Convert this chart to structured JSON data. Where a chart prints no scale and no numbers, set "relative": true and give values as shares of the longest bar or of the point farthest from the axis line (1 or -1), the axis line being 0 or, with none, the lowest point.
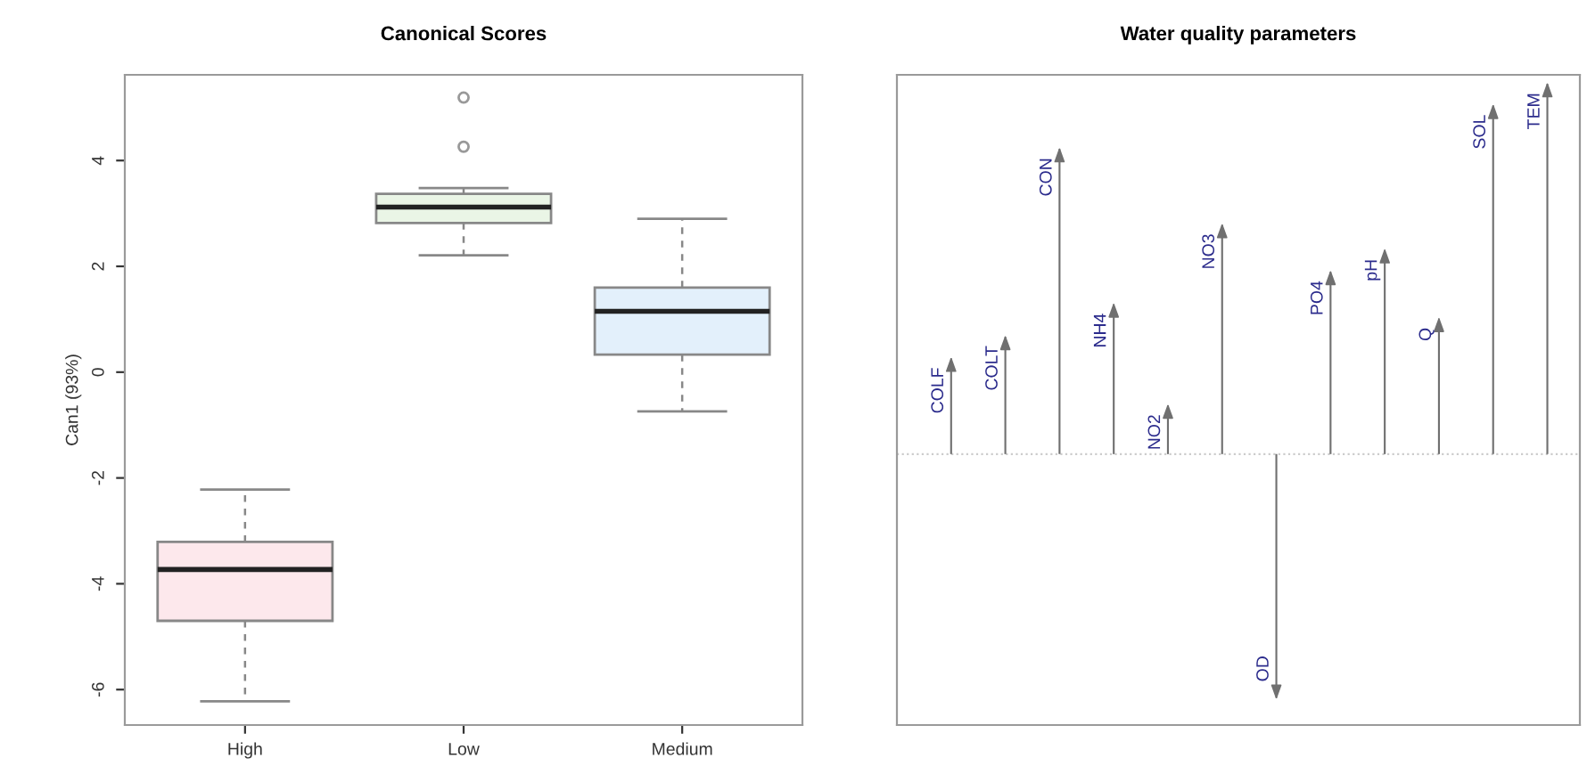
{
  "chart_data": [
    {
      "type": "box",
      "title": "Canonical Scores",
      "ylabel": "Can1 (93%)",
      "categories": [
        "High",
        "Low",
        "Medium"
      ],
      "boxes": [
        {
          "low": -6.22,
          "q1": -4.7,
          "median": -3.73,
          "q3": -3.21,
          "high": -2.22
        },
        {
          "low": 2.21,
          "q1": 2.82,
          "median": 3.12,
          "q3": 3.37,
          "high": 3.48,
          "outliers": [
            4.26,
            5.19
          ]
        },
        {
          "low": -0.74,
          "q1": 0.33,
          "median": 1.15,
          "q3": 1.6,
          "high": 2.9
        }
      ],
      "colors": [
        "#fde8ec",
        "#eaf5e6",
        "#e3f0fb"
      ],
      "ylim": [
        -6.67,
        5.62
      ],
      "yticks": [
        -6,
        -4,
        -2,
        0,
        2,
        4
      ]
    },
    {
      "type": "bar",
      "title": "Water quality parameters",
      "relative": true,
      "color": "#707070",
      "ref_lines": [
        {
          "axis": "y",
          "value": 0,
          "color": "#cccccc",
          "line_style": "dotted"
        }
      ],
      "categories": [
        "COLF",
        "COLT",
        "CON",
        "NH4",
        "NO2",
        "NO3",
        "OD",
        "PO4",
        "pH",
        "Q",
        "SOL",
        "TEM"
      ],
      "values": [
        0.24,
        0.3,
        0.82,
        0.39,
        0.11,
        0.61,
        -0.65,
        0.48,
        0.54,
        0.35,
        0.94,
        1.0
      ]
    }
  ]
}
